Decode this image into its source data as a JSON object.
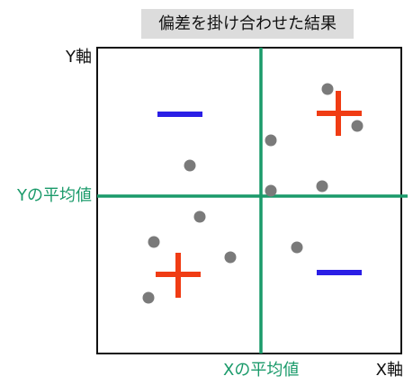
{
  "title": "偏差を掛け合わせた結果",
  "axes": {
    "y_label": "Y軸",
    "x_label": "X軸",
    "y_mean_label": "Yの平均値",
    "x_mean_label": "Xの平均値"
  },
  "signs": {
    "top_left": "−",
    "top_right": "+",
    "bottom_left": "+",
    "bottom_right": "−"
  },
  "colors": {
    "mean_line": "#1a9a6a",
    "plus": "#f03c14",
    "minus": "#2a1ee6",
    "point": "#7a7a7a",
    "frame": "#111111",
    "title_bg": "#dcdcdc"
  }
}
